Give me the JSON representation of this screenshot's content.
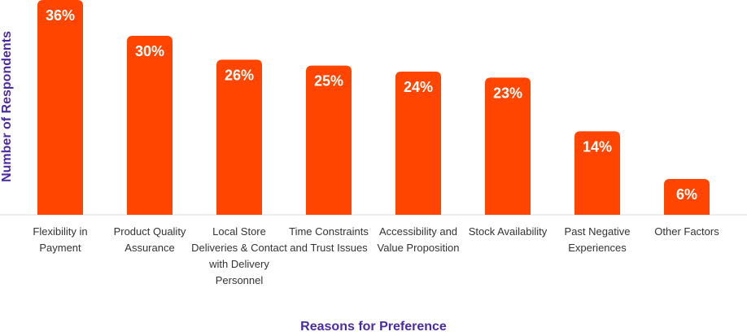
{
  "chart_data": {
    "type": "bar",
    "categories": [
      "Flexibility in Payment",
      "Product Quality Assurance",
      "Local Store Deliveries & Contact with Delivery Personnel",
      "Time Constraints and Trust Issues",
      "Accessibility and Value Proposition",
      "Stock Availability",
      "Past Negative Experiences",
      "Other Factors"
    ],
    "values": [
      36,
      30,
      26,
      25,
      24,
      23,
      14,
      6
    ],
    "value_labels": [
      "36%",
      "30%",
      "26%",
      "25%",
      "24%",
      "23%",
      "14%",
      "6%"
    ],
    "xlabel": "Reasons for Preference",
    "ylabel": "Number of Respondents",
    "ylim": [
      0,
      36
    ],
    "grid": false,
    "bar_color": "#ff4500",
    "label_color": "#ffffff",
    "axis_title_color": "#4b2ca0"
  }
}
